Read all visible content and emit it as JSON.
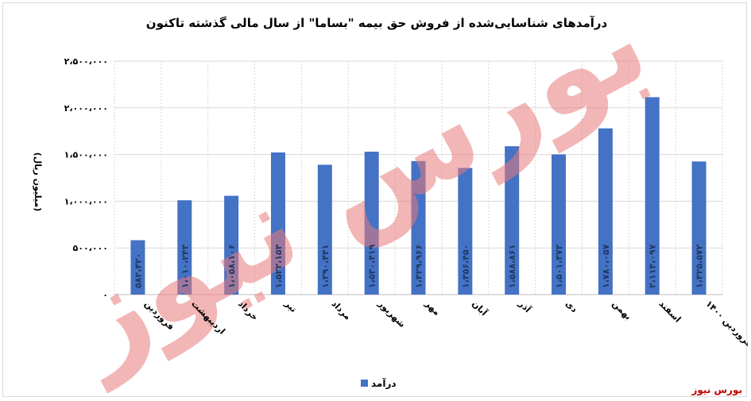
{
  "chart_data": {
    "type": "bar",
    "title": "درآمدهای شناسایی‌شده از فروش حق بیمه \"بساما\" از سال مالی گذشته تاکنون",
    "ylabel": "(میلیون ریال)",
    "xlabel": "",
    "ylim": [
      0,
      2500000
    ],
    "yticks": [
      0,
      500000,
      1000000,
      1500000,
      2000000,
      2500000
    ],
    "ytick_labels": [
      "۰",
      "۵۰۰،۰۰۰",
      "۱،۰۰۰،۰۰۰",
      "۱،۵۰۰،۰۰۰",
      "۲،۰۰۰،۰۰۰",
      "۲،۵۰۰،۰۰۰"
    ],
    "categories": [
      "فروردین",
      "اردیبهشت",
      "خرداد",
      "تیر",
      "مرداد",
      "شهریور",
      "مهر",
      "آبان",
      "آذر",
      "دی",
      "بهمن",
      "اسفند",
      "فروردین ۱۴۰۰"
    ],
    "series": [
      {
        "name": "درآمد",
        "color": "#4472c4",
        "values": [
          582420,
          1010243,
          1058106,
          1522154,
          1390441,
          1530419,
          1429966,
          1356450,
          1588861,
          1501373,
          1780057,
          2114097,
          1425572
        ],
        "labels": [
          "۵۸۲،۴۲۰",
          "۱،۰۱۰،۲۴۳",
          "۱،۰۵۸،۱۰۶",
          "۱،۵۲۲،۱۵۴",
          "۱،۳۹۰،۴۴۱",
          "۱،۵۳۰،۴۱۹",
          "۱،۴۲۹،۹۶۶",
          "۱،۳۵۶،۴۵۰",
          "۱،۵۸۸،۸۶۱",
          "۱،۵۰۱،۳۷۳",
          "۱،۷۸۰،۰۵۷",
          "۲،۱۱۴،۰۹۷",
          "۱،۴۲۵،۵۷۲"
        ]
      }
    ],
    "grid": true,
    "legend_position": "bottom"
  },
  "watermark": "بورس نیوز",
  "brand": "بورس نیوز"
}
